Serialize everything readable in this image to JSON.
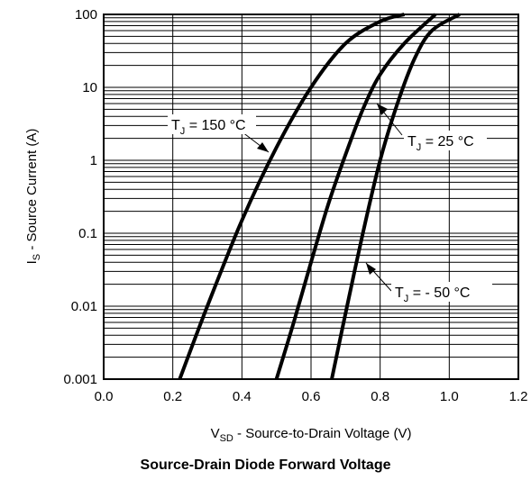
{
  "chart_data": {
    "type": "line",
    "title": "Source-Drain Diode Forward Voltage",
    "xlabel": {
      "main": "V",
      "sub": "SD",
      "rest": " - Source-to-Drain Voltage (V)"
    },
    "ylabel": {
      "main": "I",
      "sub": "S",
      "rest": " - Source Current (A)"
    },
    "xlim": [
      0.0,
      1.2
    ],
    "ylim": [
      0.001,
      100
    ],
    "yscale": "log",
    "grid": true,
    "x_ticks": [
      "0.0",
      "0.2",
      "0.4",
      "0.6",
      "0.8",
      "1.0",
      "1.2"
    ],
    "y_ticks": [
      "0.001",
      "0.01",
      "0.1",
      "1",
      "10",
      "100"
    ],
    "series": [
      {
        "name": "T_J = 150 °C",
        "x": [
          0.22,
          0.3,
          0.4,
          0.5,
          0.6,
          0.7,
          0.8,
          0.87
        ],
        "y": [
          0.001,
          0.01,
          0.15,
          1.5,
          10,
          40,
          80,
          100
        ]
      },
      {
        "name": "T_J = 25 °C",
        "x": [
          0.5,
          0.55,
          0.6,
          0.65,
          0.7,
          0.75,
          0.8,
          0.87,
          0.96
        ],
        "y": [
          0.001,
          0.006,
          0.04,
          0.25,
          1.2,
          5,
          15,
          40,
          100
        ]
      },
      {
        "name": "T_J = - 50 °C",
        "x": [
          0.66,
          0.7,
          0.75,
          0.8,
          0.85,
          0.9,
          0.95,
          1.03
        ],
        "y": [
          0.001,
          0.008,
          0.1,
          1,
          6,
          25,
          60,
          100
        ]
      }
    ],
    "annotations": [
      {
        "main": "T",
        "sub": "J",
        "rest": " = 150 °C"
      },
      {
        "main": "T",
        "sub": "J",
        "rest": " = 25 °C"
      },
      {
        "main": "T",
        "sub": "J",
        "rest": " = - 50 °C"
      }
    ]
  }
}
